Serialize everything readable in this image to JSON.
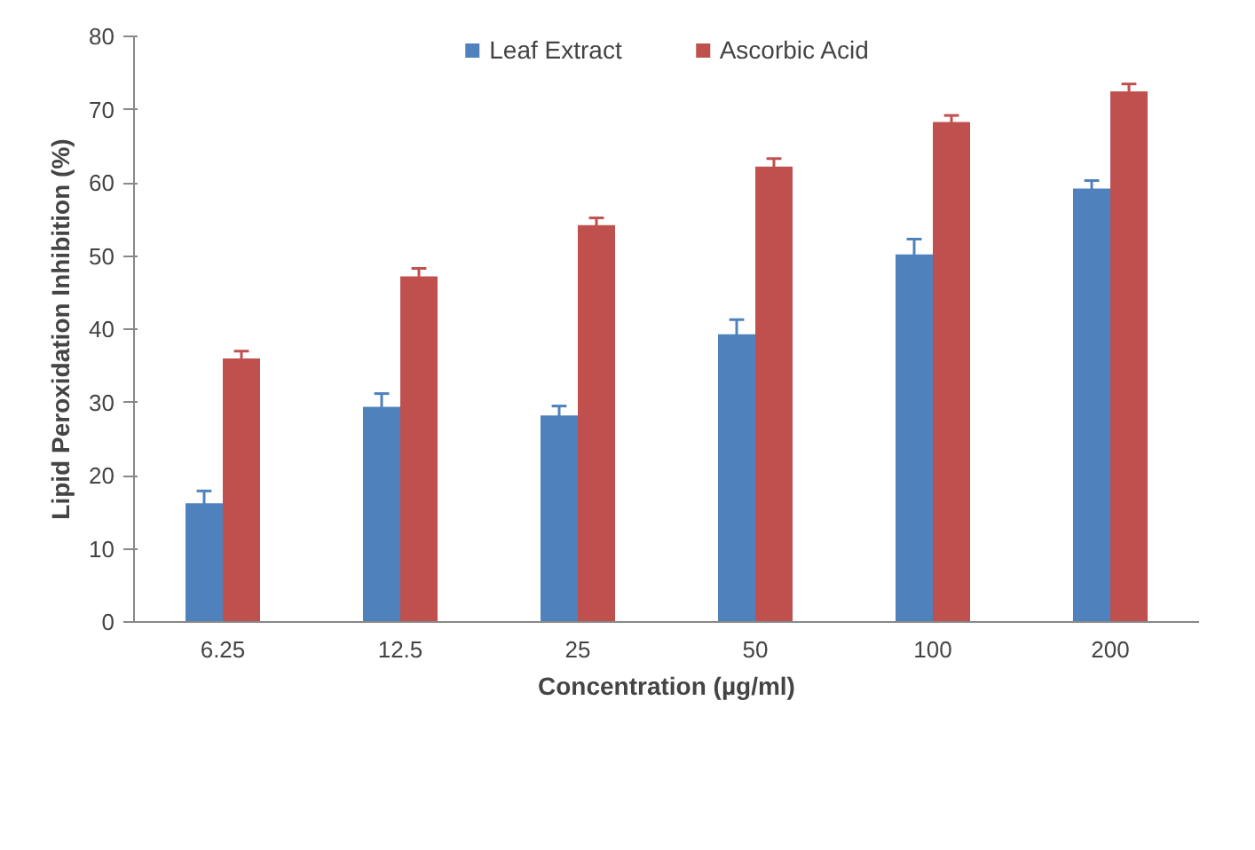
{
  "chart_data": {
    "type": "bar",
    "xlabel": "Concentration (µg/ml)",
    "ylabel": "Lipid Peroxidation Inhibition (%)",
    "categories": [
      "6.25",
      "12.5",
      "25",
      "50",
      "100",
      "200"
    ],
    "series": [
      {
        "name": "Leaf Extract",
        "color": "#4f81bd",
        "values": [
          16.2,
          29.4,
          28.2,
          39.3,
          50.2,
          59.2
        ],
        "errors": [
          1.7,
          1.8,
          1.3,
          2,
          2.1,
          1.1
        ]
      },
      {
        "name": "Ascorbic Acid",
        "color": "#c0504d",
        "values": [
          36,
          47.2,
          54.2,
          62.2,
          68.3,
          72.5
        ],
        "errors": [
          1,
          1.1,
          1,
          1.1,
          0.9,
          1
        ]
      }
    ],
    "ylim": [
      0,
      80
    ],
    "yticks": [
      0,
      10,
      20,
      30,
      40,
      50,
      60,
      70,
      80
    ],
    "grid": false,
    "legend": "top"
  }
}
